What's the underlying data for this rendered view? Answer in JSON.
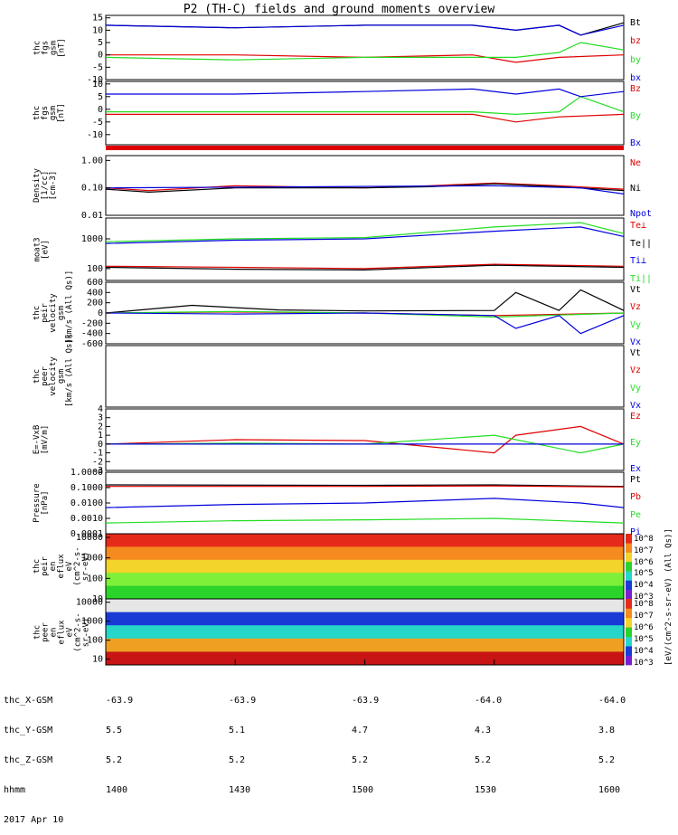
{
  "title": "P2 (TH-C) fields and ground moments overview",
  "colors": {
    "black": "#000000",
    "red": "#e00000",
    "green": "#22dd22",
    "blue": "#0000dd"
  },
  "footer": {
    "row_labels": [
      "thc_X-GSM",
      "thc_Y-GSM",
      "thc_Z-GSM",
      "hhmm",
      "2017 Apr 10"
    ],
    "columns": [
      [
        "-63.9",
        "5.5",
        "5.2",
        "1400"
      ],
      [
        "-63.9",
        "5.1",
        "5.2",
        "1430"
      ],
      [
        "-63.9",
        "4.7",
        "5.2",
        "1500"
      ],
      [
        "-64.0",
        "4.3",
        "5.2",
        "1530"
      ],
      [
        "-64.0",
        "3.8",
        "5.2",
        "1600"
      ]
    ]
  },
  "chart_data": [
    {
      "type": "line",
      "ylabel": "thc\nfgs\ngsm\n[nT]",
      "yticks": [
        "15",
        "10",
        "5",
        "0",
        "-5",
        "-10"
      ],
      "ylim": [
        -10,
        16
      ],
      "legend": [
        "Bt",
        "bz",
        "by",
        "bx"
      ],
      "legend_colors": [
        "black",
        "red",
        "green",
        "blue"
      ],
      "series": [
        {
          "name": "Bt",
          "color": "black",
          "x": [
            "14:00",
            "14:30",
            "15:00",
            "15:25",
            "15:35",
            "15:45",
            "15:50",
            "16:00"
          ],
          "values": [
            12,
            11,
            12,
            12,
            10,
            12,
            8,
            13
          ]
        },
        {
          "name": "bz",
          "color": "red",
          "x": [
            "14:00",
            "14:30",
            "15:00",
            "15:25",
            "15:35",
            "15:45",
            "16:00"
          ],
          "values": [
            0,
            0,
            -1,
            0,
            -3,
            -1,
            0
          ]
        },
        {
          "name": "by",
          "color": "green",
          "x": [
            "14:00",
            "14:30",
            "15:00",
            "15:25",
            "15:35",
            "15:45",
            "15:50",
            "16:00"
          ],
          "values": [
            -1,
            -2,
            -1,
            -1,
            -1,
            1,
            5,
            2
          ]
        },
        {
          "name": "bx",
          "color": "blue",
          "x": [
            "14:00",
            "14:30",
            "15:00",
            "15:25",
            "15:35",
            "15:45",
            "15:50",
            "16:00"
          ],
          "values": [
            12,
            11,
            12,
            12,
            10,
            12,
            8,
            12
          ]
        }
      ]
    },
    {
      "type": "line",
      "ylabel": "thc\nfgs\ngsm\n[nT]",
      "yticks": [
        "10",
        "5",
        "0",
        "-5",
        "-10"
      ],
      "ylim": [
        -14,
        11
      ],
      "legend": [
        "Bz",
        "By",
        "Bx"
      ],
      "legend_colors": [
        "red",
        "green",
        "blue"
      ],
      "series": [
        {
          "name": "Bz",
          "color": "red",
          "x": [
            "14:00",
            "14:30",
            "15:00",
            "15:25",
            "15:35",
            "15:45",
            "16:00"
          ],
          "values": [
            -2,
            -2,
            -2,
            -2,
            -5,
            -3,
            -2
          ]
        },
        {
          "name": "By",
          "color": "green",
          "x": [
            "14:00",
            "14:30",
            "15:00",
            "15:25",
            "15:35",
            "15:45",
            "15:50",
            "16:00"
          ],
          "values": [
            -1,
            -1,
            -1,
            -1,
            -2,
            -1,
            5,
            -1
          ]
        },
        {
          "name": "Bx",
          "color": "blue",
          "x": [
            "14:00",
            "14:30",
            "15:00",
            "15:25",
            "15:35",
            "15:45",
            "15:50",
            "16:00"
          ],
          "values": [
            6,
            6,
            7,
            8,
            6,
            8,
            5,
            7
          ]
        }
      ]
    },
    {
      "type": "line",
      "ylog": true,
      "ylabel": "Density\n[1/cc]\n[cm-3]",
      "yticks": [
        "1.00",
        "0.10",
        "0.01"
      ],
      "ylim": [
        0.01,
        1.5
      ],
      "legend": [
        "Ne",
        "Ni",
        "Npot"
      ],
      "legend_colors": [
        "red",
        "black",
        "blue"
      ],
      "series": [
        {
          "name": "Ne",
          "color": "red",
          "x": [
            "14:00",
            "14:10",
            "14:30",
            "15:00",
            "15:15",
            "15:30",
            "15:45",
            "16:00"
          ],
          "values": [
            0.1,
            0.08,
            0.12,
            0.1,
            0.12,
            0.15,
            0.12,
            0.09
          ]
        },
        {
          "name": "Ni",
          "color": "black",
          "x": [
            "14:00",
            "14:10",
            "14:30",
            "15:00",
            "15:15",
            "15:30",
            "15:45",
            "16:00"
          ],
          "values": [
            0.09,
            0.07,
            0.1,
            0.1,
            0.11,
            0.14,
            0.11,
            0.08
          ]
        },
        {
          "name": "Npot",
          "color": "blue",
          "x": [
            "14:00",
            "15:30",
            "15:50",
            "16:00"
          ],
          "values": [
            0.1,
            0.12,
            0.1,
            0.06
          ]
        }
      ]
    },
    {
      "type": "line",
      "ylog": true,
      "ylabel": "moat3\n[eV]",
      "yticks": [
        "1000",
        "100"
      ],
      "ylim": [
        40,
        5000
      ],
      "legend": [
        "Te⊥",
        "Te||",
        "Ti⊥",
        "Ti||"
      ],
      "legend_colors": [
        "red",
        "black",
        "blue",
        "green"
      ],
      "series": [
        {
          "name": "Te⊥",
          "color": "red",
          "x": [
            "14:00",
            "14:30",
            "15:00",
            "15:30",
            "16:00"
          ],
          "values": [
            120,
            110,
            100,
            140,
            120
          ]
        },
        {
          "name": "Te||",
          "color": "black",
          "x": [
            "14:00",
            "14:30",
            "15:00",
            "15:30",
            "16:00"
          ],
          "values": [
            110,
            95,
            90,
            130,
            110
          ]
        },
        {
          "name": "Ti⊥",
          "color": "blue",
          "x": [
            "14:00",
            "14:30",
            "15:00",
            "15:30",
            "15:50",
            "16:00"
          ],
          "values": [
            700,
            900,
            1000,
            1800,
            2500,
            1200
          ]
        },
        {
          "name": "Ti||",
          "color": "green",
          "x": [
            "14:00",
            "14:30",
            "15:00",
            "15:30",
            "15:50",
            "16:00"
          ],
          "values": [
            800,
            1000,
            1100,
            2500,
            3500,
            1500
          ]
        }
      ]
    },
    {
      "type": "line",
      "ylabel": "thc\npeir\nvelocity\ngsm\n[km/s (All Qs)]",
      "yticks": [
        "600",
        "400",
        "200",
        "0",
        "-200",
        "-400",
        "-600"
      ],
      "ylim": [
        -600,
        600
      ],
      "legend": [
        "Vt",
        "Vz",
        "Vy",
        "Vx"
      ],
      "legend_colors": [
        "black",
        "red",
        "green",
        "blue"
      ],
      "series": [
        {
          "name": "Vt",
          "color": "black",
          "x": [
            "14:00",
            "14:20",
            "14:40",
            "15:00",
            "15:30",
            "15:35",
            "15:45",
            "15:50",
            "16:00"
          ],
          "values": [
            0,
            150,
            60,
            40,
            50,
            400,
            50,
            450,
            50
          ]
        },
        {
          "name": "Vz",
          "color": "red",
          "x": [
            "14:00",
            "14:30",
            "15:00",
            "15:30",
            "16:00"
          ],
          "values": [
            0,
            20,
            0,
            -50,
            0
          ]
        },
        {
          "name": "Vy",
          "color": "green",
          "x": [
            "14:00",
            "14:30",
            "15:00",
            "15:30",
            "16:00"
          ],
          "values": [
            0,
            30,
            0,
            -80,
            0
          ]
        },
        {
          "name": "Vx",
          "color": "blue",
          "x": [
            "14:00",
            "14:30",
            "15:00",
            "15:30",
            "15:35",
            "15:45",
            "15:50",
            "16:00"
          ],
          "values": [
            0,
            -20,
            0,
            -50,
            -300,
            -50,
            -400,
            -50
          ]
        }
      ]
    },
    {
      "type": "line",
      "ylabel": "thc\npeer\nvelocity\ngsm\n[km/s (All Qs)]",
      "yticks": [],
      "ylim": [
        -1,
        1
      ],
      "legend": [
        "Vt",
        "Vz",
        "Vy",
        "Vx"
      ],
      "legend_colors": [
        "black",
        "red",
        "green",
        "blue"
      ],
      "series": []
    },
    {
      "type": "line",
      "ylabel": "E=-VxB\n[mV/m]",
      "yticks": [
        "4",
        "3",
        "2",
        "1",
        "0",
        "-1",
        "-2",
        "-3"
      ],
      "ylim": [
        -3,
        4
      ],
      "legend": [
        "Ez",
        "Ey",
        "Ex"
      ],
      "legend_colors": [
        "red",
        "green",
        "blue"
      ],
      "series": [
        {
          "name": "Ez",
          "color": "red",
          "x": [
            "14:00",
            "14:30",
            "15:00",
            "15:30",
            "15:35",
            "15:50",
            "16:00"
          ],
          "values": [
            0,
            0.5,
            0.4,
            -1,
            1,
            2,
            0
          ]
        },
        {
          "name": "Ey",
          "color": "green",
          "x": [
            "14:00",
            "14:30",
            "15:00",
            "15:30",
            "15:50",
            "16:00"
          ],
          "values": [
            0,
            0.1,
            0,
            1,
            -1,
            0
          ]
        },
        {
          "name": "Ex",
          "color": "blue",
          "x": [
            "14:00",
            "15:30",
            "16:00"
          ],
          "values": [
            0,
            0,
            0
          ]
        }
      ]
    },
    {
      "type": "line",
      "ylog": true,
      "ylabel": "Pressure\n[nPa]",
      "yticks": [
        "1.0000",
        "0.1000",
        "0.0100",
        "0.0010",
        "0.0001"
      ],
      "ylim": [
        0.0001,
        1.0
      ],
      "legend": [
        "Pt",
        "Pb",
        "Pe",
        "Pi"
      ],
      "legend_colors": [
        "black",
        "red",
        "green",
        "blue"
      ],
      "series": [
        {
          "name": "Pt",
          "color": "black",
          "x": [
            "14:00",
            "15:00",
            "15:30",
            "16:00"
          ],
          "values": [
            0.15,
            0.14,
            0.15,
            0.12
          ]
        },
        {
          "name": "Pb",
          "color": "red",
          "x": [
            "14:00",
            "15:00",
            "15:30",
            "16:00"
          ],
          "values": [
            0.12,
            0.12,
            0.13,
            0.11
          ]
        },
        {
          "name": "Pe",
          "color": "green",
          "x": [
            "14:00",
            "14:30",
            "15:00",
            "15:30",
            "16:00"
          ],
          "values": [
            0.0005,
            0.0007,
            0.0008,
            0.001,
            0.0005
          ]
        },
        {
          "name": "Pi",
          "color": "blue",
          "x": [
            "14:00",
            "14:30",
            "15:00",
            "15:30",
            "15:50",
            "16:00"
          ],
          "values": [
            0.005,
            0.008,
            0.01,
            0.02,
            0.01,
            0.005
          ]
        }
      ]
    },
    {
      "type": "heatmap",
      "ylog": true,
      "ylabel": "thc\npeir\nen\neflux\neV\n(cm^2-s-\nsr-eV)",
      "yticks": [
        "10000",
        "1000",
        "100",
        "10"
      ],
      "ylim": [
        10,
        15000
      ],
      "colorbar": {
        "ticks": [
          "10^8",
          "10^7",
          "10^6",
          "10^5",
          "10^4",
          "10^3"
        ],
        "label": "[eV/(cm^2-s-sr-eV) (All Qs)]"
      }
    },
    {
      "type": "heatmap",
      "ylog": true,
      "ylabel": "thc\npeer\nen\neflux\neV\n(cm^2-s-\nsr-eV)",
      "yticks": [
        "10000",
        "1000",
        "100",
        "10"
      ],
      "ylim": [
        5,
        15000
      ],
      "colorbar": {
        "ticks": [
          "10^8",
          "10^7",
          "10^6",
          "10^5",
          "10^4",
          "10^3"
        ]
      }
    }
  ]
}
